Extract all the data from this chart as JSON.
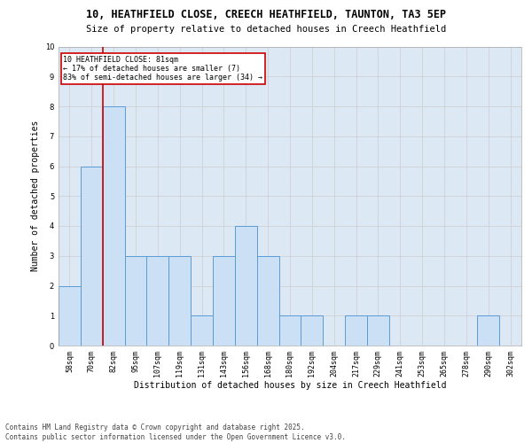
{
  "title1": "10, HEATHFIELD CLOSE, CREECH HEATHFIELD, TAUNTON, TA3 5EP",
  "title2": "Size of property relative to detached houses in Creech Heathfield",
  "xlabel": "Distribution of detached houses by size in Creech Heathfield",
  "ylabel": "Number of detached properties",
  "categories": [
    "58sqm",
    "70sqm",
    "82sqm",
    "95sqm",
    "107sqm",
    "119sqm",
    "131sqm",
    "143sqm",
    "156sqm",
    "168sqm",
    "180sqm",
    "192sqm",
    "204sqm",
    "217sqm",
    "229sqm",
    "241sqm",
    "253sqm",
    "265sqm",
    "278sqm",
    "290sqm",
    "302sqm"
  ],
  "values": [
    2,
    6,
    8,
    3,
    3,
    3,
    1,
    3,
    4,
    3,
    1,
    1,
    0,
    1,
    1,
    0,
    0,
    0,
    0,
    1,
    0
  ],
  "bar_color": "#cce0f5",
  "bar_edge_color": "#5b9bd5",
  "vline_x": 2,
  "vline_color": "#cc0000",
  "annotation_text": "10 HEATHFIELD CLOSE: 81sqm\n← 17% of detached houses are smaller (7)\n83% of semi-detached houses are larger (34) →",
  "annotation_box_color": "#cc0000",
  "ylim": [
    0,
    10
  ],
  "yticks": [
    0,
    1,
    2,
    3,
    4,
    5,
    6,
    7,
    8,
    9,
    10
  ],
  "grid_color": "#cccccc",
  "bg_color": "#dde8f5",
  "footer1": "Contains HM Land Registry data © Crown copyright and database right 2025.",
  "footer2": "Contains public sector information licensed under the Open Government Licence v3.0.",
  "title_fontsize": 8.5,
  "subtitle_fontsize": 7.5,
  "axis_label_fontsize": 7,
  "tick_fontsize": 6,
  "annotation_fontsize": 6,
  "footer_fontsize": 5.5
}
